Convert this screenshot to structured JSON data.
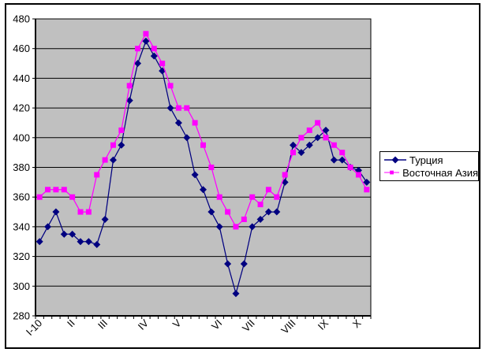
{
  "chart_data": {
    "type": "line",
    "title": "",
    "plot_bg_color": "#C0C0C0",
    "outer_bg_color": "#FFFFFF",
    "grid": true,
    "y_axis": {
      "min": 280,
      "max": 480,
      "step": 20,
      "tick_labels": [
        "280",
        "300",
        "320",
        "340",
        "360",
        "380",
        "400",
        "420",
        "440",
        "460",
        "480"
      ]
    },
    "x_axis": {
      "num_points": 41,
      "tick_labels": [
        "I-10",
        "II",
        "III",
        "IV",
        "V",
        "VI",
        "VII",
        "VIII",
        "IX",
        "X"
      ],
      "label_point_indices": [
        0,
        4,
        8,
        13,
        17,
        22,
        26,
        31,
        35,
        39
      ]
    },
    "legend": {
      "position": "middle-right"
    },
    "series": [
      {
        "name": "Турция",
        "color": "#000080",
        "marker": "diamond",
        "values": [
          330,
          340,
          350,
          335,
          335,
          330,
          330,
          328,
          345,
          385,
          395,
          425,
          450,
          465,
          455,
          445,
          420,
          410,
          400,
          375,
          365,
          350,
          340,
          315,
          295,
          315,
          340,
          345,
          350,
          350,
          370,
          395,
          390,
          395,
          400,
          405,
          385,
          385,
          380,
          378,
          370
        ]
      },
      {
        "name": "Восточная Азия",
        "color": "#FF00FF",
        "marker": "square",
        "values": [
          360,
          365,
          365,
          365,
          360,
          350,
          350,
          375,
          385,
          395,
          405,
          435,
          460,
          470,
          460,
          450,
          435,
          420,
          420,
          410,
          395,
          380,
          360,
          350,
          340,
          345,
          360,
          355,
          365,
          360,
          375,
          390,
          400,
          405,
          410,
          400,
          395,
          390,
          380,
          375,
          365
        ]
      }
    ]
  }
}
